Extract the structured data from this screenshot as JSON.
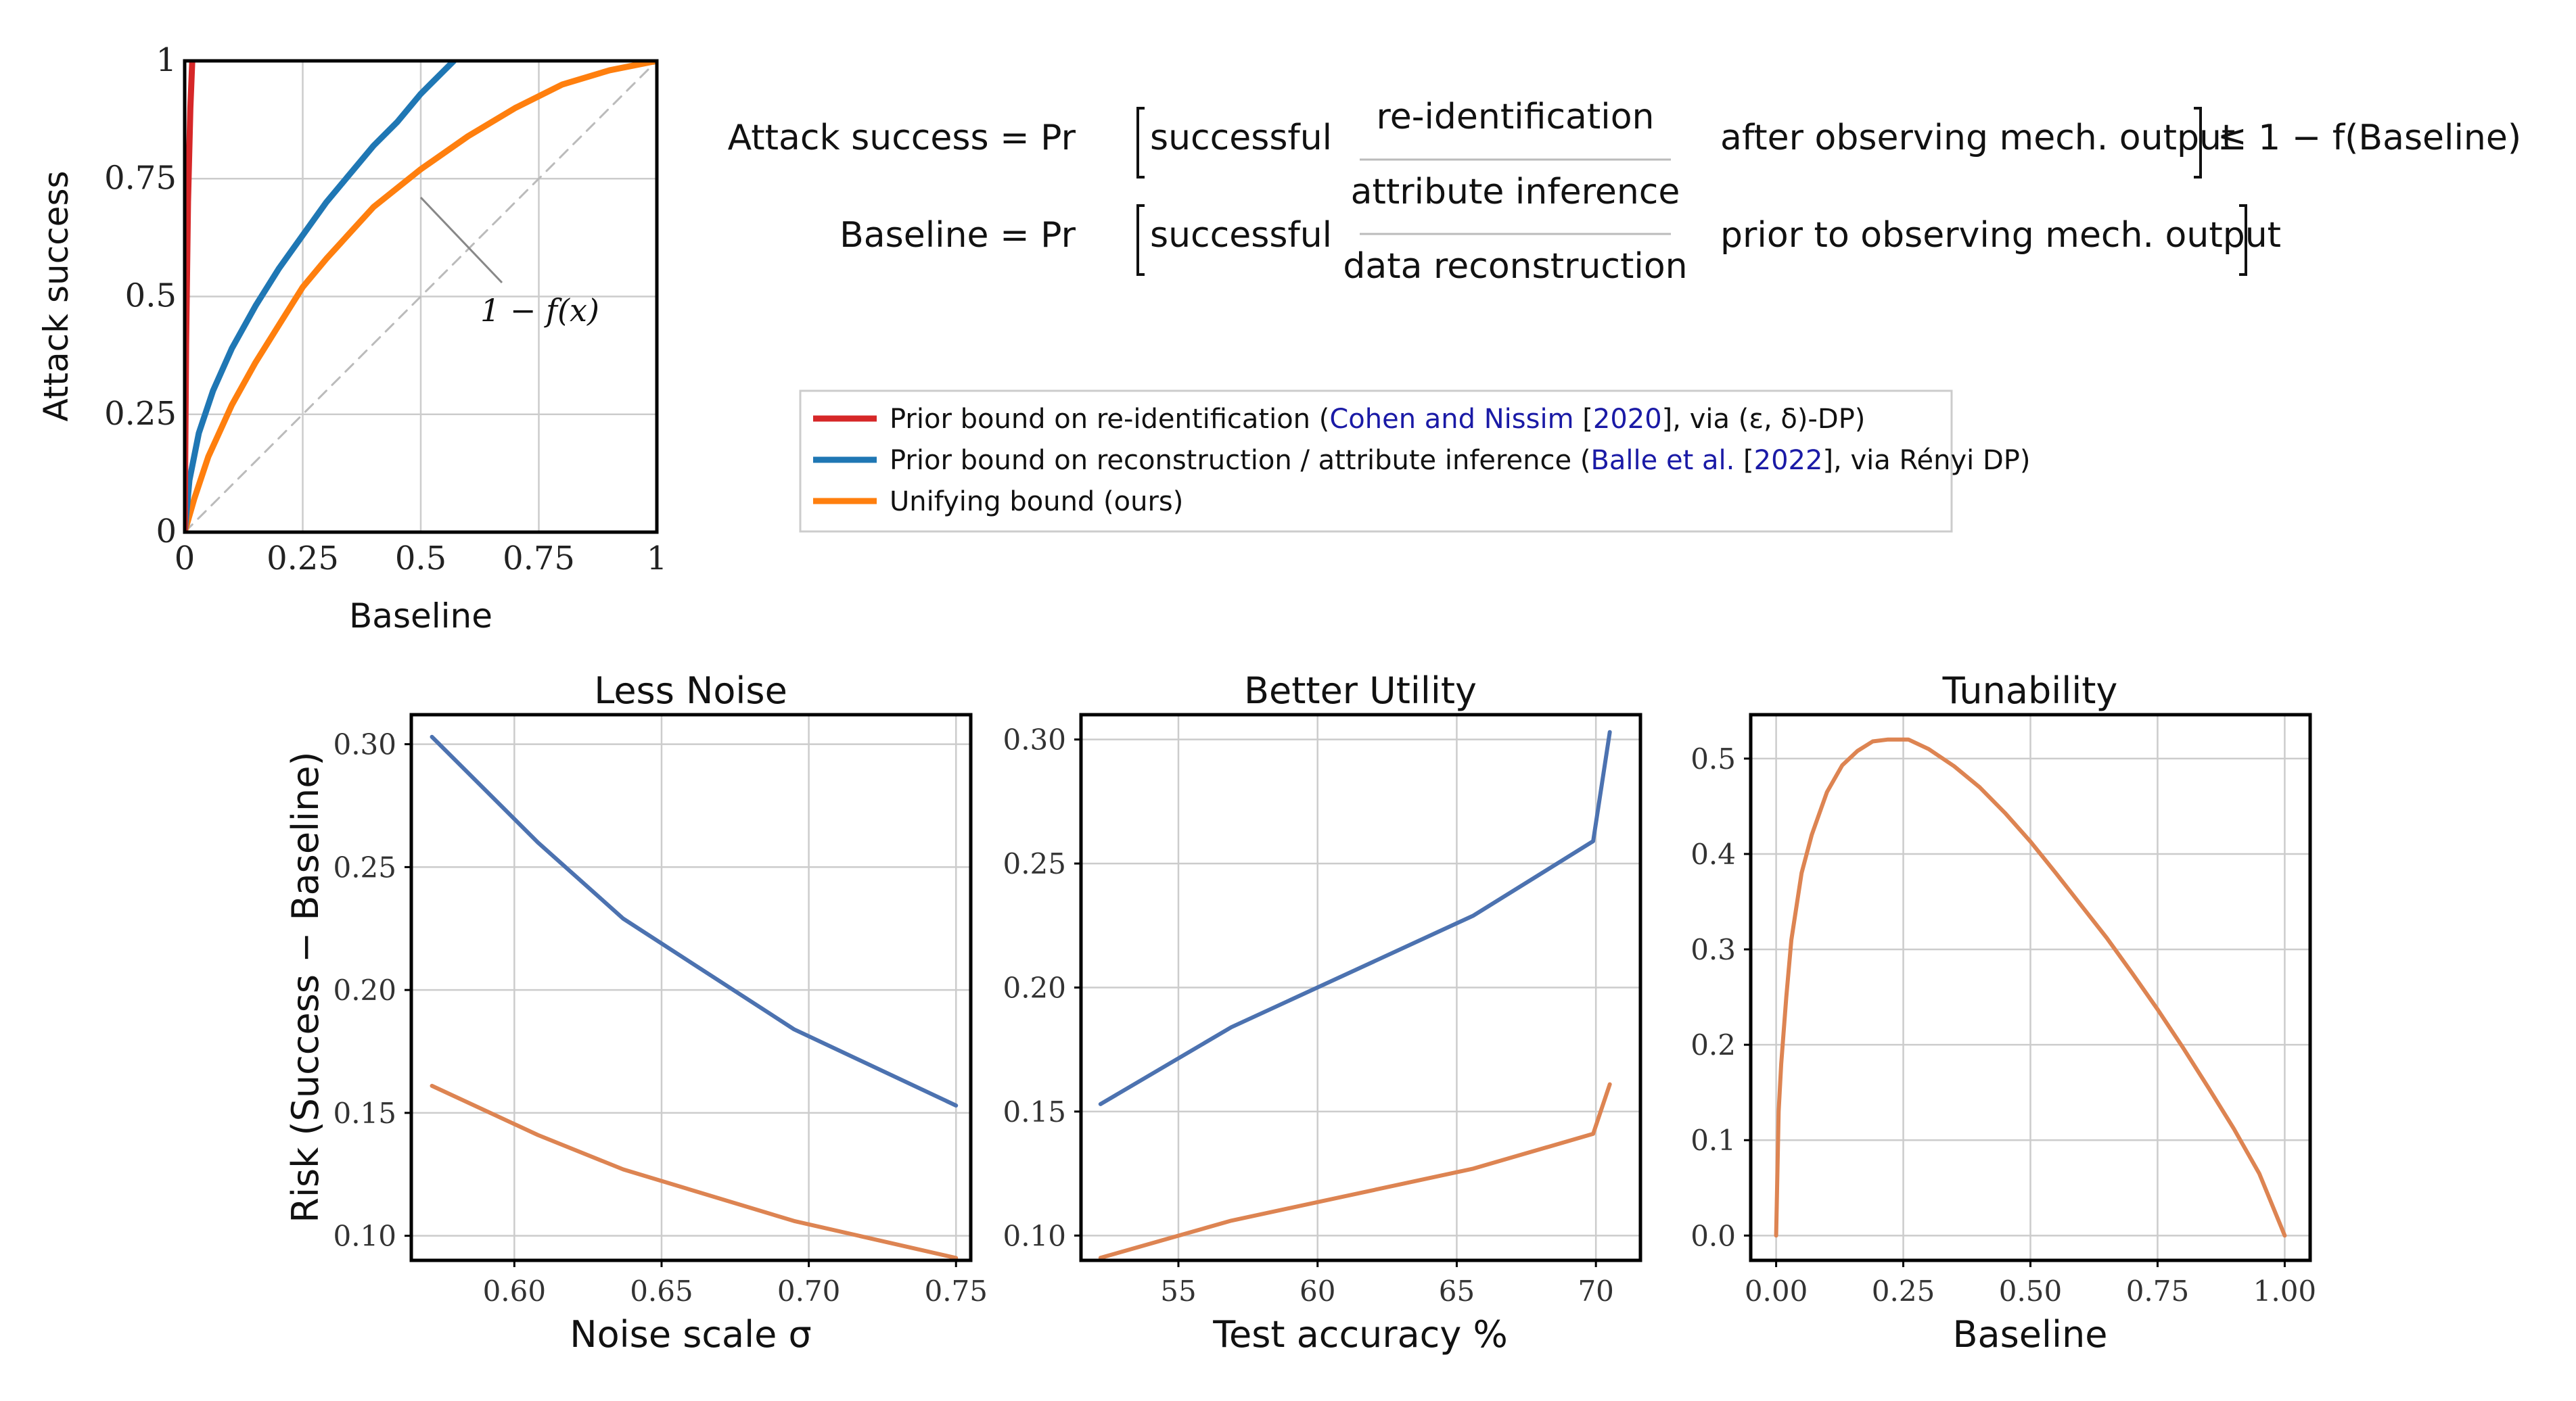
{
  "equations": {
    "line1_left": "Attack success = Pr",
    "line2_left": "Baseline = Pr",
    "successful": "successful",
    "opt1": "re-identification",
    "opt2": "attribute inference",
    "opt3": "data reconstruction",
    "line1_right": "after observing mech. output",
    "line2_right": "prior to observing mech. output",
    "bound": "≤ 1 − f(Baseline)"
  },
  "legend": {
    "items": [
      {
        "pre": "Prior bound on re-identification (",
        "cite1": "Cohen and Nissim",
        "mid": " [",
        "cite2": "2020",
        "post": "], via (ε, δ)-DP)",
        "color": "#d62728"
      },
      {
        "pre": "Prior bound on reconstruction / attribute inference (",
        "cite1": "Balle et al.",
        "mid": " [",
        "cite2": "2022",
        "post": "], via Rényi DP)",
        "color": "#1f77b4"
      },
      {
        "pre": "Unifying bound (ours)",
        "cite1": "",
        "mid": "",
        "cite2": "",
        "post": "",
        "color": "#ff7f0e"
      }
    ]
  },
  "chart_data": [
    {
      "type": "line",
      "title": "",
      "xlabel": "Baseline",
      "ylabel": "Attack success",
      "xlim": [
        0,
        1
      ],
      "ylim": [
        0,
        1
      ],
      "xticks": [
        0,
        0.25,
        0.5,
        0.75,
        1
      ],
      "xtick_labels": [
        "0",
        "0.25",
        "0.5",
        "0.75",
        "1"
      ],
      "yticks": [
        0,
        0.25,
        0.5,
        0.75,
        1
      ],
      "ytick_labels": [
        "0",
        "0.25",
        "0.5",
        "0.75",
        "1"
      ],
      "annotation": "1 − f(x)",
      "series": [
        {
          "name": "Prior bound on re-identification",
          "color": "#d62728",
          "x": [
            0,
            0.003,
            0.007,
            0.012,
            0.016
          ],
          "y": [
            0,
            0.4,
            0.7,
            0.9,
            1.0
          ]
        },
        {
          "name": "Prior bound on reconstruction / attribute inference",
          "color": "#1f77b4",
          "x": [
            0,
            0.01,
            0.03,
            0.06,
            0.1,
            0.15,
            0.2,
            0.25,
            0.3,
            0.35,
            0.4,
            0.45,
            0.5,
            0.55,
            0.57
          ],
          "y": [
            0,
            0.11,
            0.21,
            0.3,
            0.39,
            0.48,
            0.56,
            0.63,
            0.7,
            0.76,
            0.82,
            0.87,
            0.93,
            0.98,
            1.0
          ]
        },
        {
          "name": "Unifying bound (ours)",
          "color": "#ff7f0e",
          "x": [
            0,
            0.02,
            0.05,
            0.1,
            0.15,
            0.2,
            0.25,
            0.3,
            0.4,
            0.5,
            0.6,
            0.7,
            0.8,
            0.9,
            1.0
          ],
          "y": [
            0,
            0.07,
            0.16,
            0.27,
            0.36,
            0.44,
            0.52,
            0.58,
            0.69,
            0.77,
            0.84,
            0.9,
            0.95,
            0.98,
            1.0
          ]
        },
        {
          "name": "diagonal",
          "color": "#bbbbbb",
          "x": [
            0,
            1
          ],
          "y": [
            0,
            1
          ]
        }
      ]
    },
    {
      "type": "line",
      "title": "Less Noise",
      "xlabel": "Noise scale σ",
      "ylabel": "Risk (Success − Baseline)",
      "xlim": [
        0.565,
        0.755
      ],
      "ylim": [
        0.09,
        0.312
      ],
      "xticks": [
        0.6,
        0.65,
        0.7,
        0.75
      ],
      "xtick_labels": [
        "0.60",
        "0.65",
        "0.70",
        "0.75"
      ],
      "yticks": [
        0.1,
        0.15,
        0.2,
        0.25,
        0.3
      ],
      "ytick_labels": [
        "0.10",
        "0.15",
        "0.20",
        "0.25",
        "0.30"
      ],
      "series": [
        {
          "name": "prior",
          "color": "#4c72b0",
          "x": [
            0.572,
            0.608,
            0.637,
            0.695,
            0.75
          ],
          "y": [
            0.303,
            0.26,
            0.229,
            0.184,
            0.153
          ]
        },
        {
          "name": "ours",
          "color": "#dd8452",
          "x": [
            0.572,
            0.608,
            0.637,
            0.695,
            0.75
          ],
          "y": [
            0.161,
            0.141,
            0.127,
            0.106,
            0.091
          ]
        }
      ]
    },
    {
      "type": "line",
      "title": "Better Utility",
      "xlabel": "Test accuracy %",
      "ylabel": "",
      "xlim": [
        51.5,
        71.6
      ],
      "ylim": [
        0.09,
        0.31
      ],
      "xticks": [
        55,
        60,
        65,
        70
      ],
      "xtick_labels": [
        "55",
        "60",
        "65",
        "70"
      ],
      "yticks": [
        0.1,
        0.15,
        0.2,
        0.25,
        0.3
      ],
      "ytick_labels": [
        "0.10",
        "0.15",
        "0.20",
        "0.25",
        "0.30"
      ],
      "series": [
        {
          "name": "prior",
          "color": "#4c72b0",
          "x": [
            52.2,
            56.9,
            65.6,
            69.9,
            70.5
          ],
          "y": [
            0.153,
            0.184,
            0.229,
            0.259,
            0.303
          ]
        },
        {
          "name": "ours",
          "color": "#dd8452",
          "x": [
            52.2,
            56.9,
            65.6,
            69.9,
            70.5
          ],
          "y": [
            0.091,
            0.106,
            0.127,
            0.141,
            0.161
          ]
        }
      ]
    },
    {
      "type": "line",
      "title": "Tunability",
      "xlabel": "Baseline",
      "ylabel": "",
      "xlim": [
        -0.05,
        1.05
      ],
      "ylim": [
        -0.026,
        0.546
      ],
      "xticks": [
        0,
        0.25,
        0.5,
        0.75,
        1
      ],
      "xtick_labels": [
        "0.00",
        "0.25",
        "0.50",
        "0.75",
        "1.00"
      ],
      "yticks": [
        0,
        0.1,
        0.2,
        0.3,
        0.4,
        0.5
      ],
      "ytick_labels": [
        "0.0",
        "0.1",
        "0.2",
        "0.3",
        "0.4",
        "0.5"
      ],
      "series": [
        {
          "name": "ours",
          "color": "#dd8452",
          "x": [
            0,
            0.005,
            0.01,
            0.02,
            0.03,
            0.05,
            0.07,
            0.1,
            0.13,
            0.16,
            0.19,
            0.22,
            0.26,
            0.3,
            0.35,
            0.4,
            0.45,
            0.5,
            0.55,
            0.6,
            0.65,
            0.7,
            0.75,
            0.8,
            0.85,
            0.9,
            0.95,
            1.0
          ],
          "y": [
            0,
            0.13,
            0.18,
            0.25,
            0.31,
            0.38,
            0.42,
            0.465,
            0.493,
            0.508,
            0.518,
            0.52,
            0.52,
            0.51,
            0.492,
            0.47,
            0.443,
            0.413,
            0.38,
            0.346,
            0.312,
            0.275,
            0.237,
            0.197,
            0.155,
            0.112,
            0.065,
            0.0
          ]
        }
      ]
    }
  ]
}
